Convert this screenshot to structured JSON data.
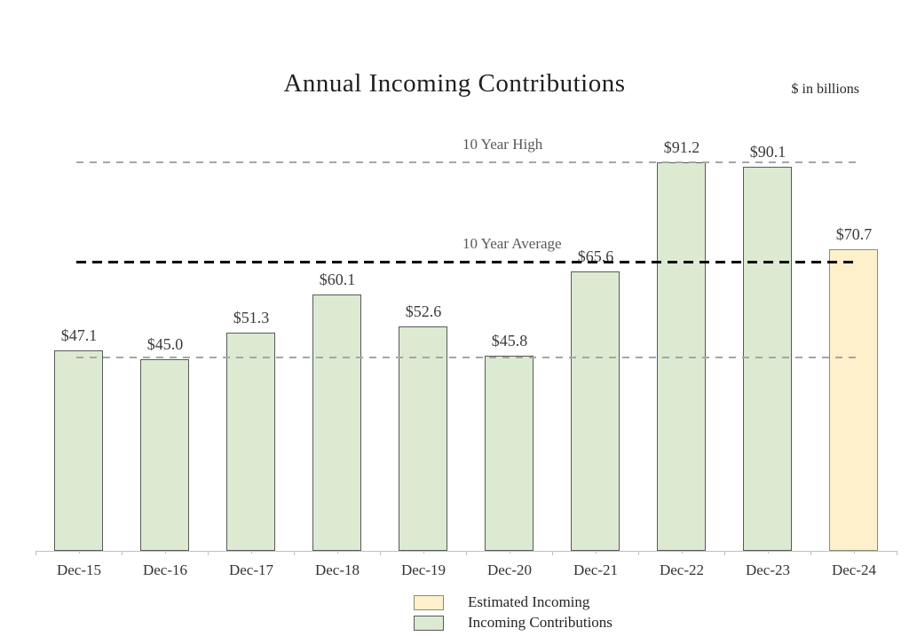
{
  "page": {
    "title": "Annual Incoming Contributions",
    "units_note": "$ in billions"
  },
  "legend": {
    "items": [
      {
        "label": "Estimated Incoming",
        "fill": "#fdf0cb",
        "border": "#8c8c7a"
      },
      {
        "label": "Incoming Contributions",
        "fill": "#dcead2",
        "border": "#595959"
      }
    ]
  },
  "chart_data": {
    "type": "bar",
    "title": "Annual Incoming Contributions",
    "units": "$ in billions",
    "categories": [
      "Dec-15",
      "Dec-16",
      "Dec-17",
      "Dec-18",
      "Dec-19",
      "Dec-20",
      "Dec-21",
      "Dec-22",
      "Dec-23",
      "Dec-24"
    ],
    "series": [
      {
        "name": "Incoming Contributions",
        "color": "#dcead2",
        "border_color": "#595959",
        "values": [
          47.1,
          45.0,
          51.3,
          60.1,
          52.6,
          45.8,
          65.6,
          91.2,
          90.1,
          null
        ]
      },
      {
        "name": "Estimated Incoming",
        "color": "#fdf0cb",
        "border_color": "#8c8c7a",
        "values": [
          null,
          null,
          null,
          null,
          null,
          null,
          null,
          null,
          null,
          70.7
        ]
      }
    ],
    "data_labels": [
      "$47.1",
      "$45.0",
      "$51.3",
      "$60.1",
      "$52.6",
      "$45.8",
      "$65.6",
      "$91.2",
      "$90.1",
      "$70.7"
    ],
    "reference_lines": [
      {
        "label": "10 Year High",
        "value": 91.2,
        "color": "#a6a6a6",
        "thickness": 2
      },
      {
        "label": "10 Year Average",
        "value": 67.9,
        "color": "#000000",
        "thickness": 3
      },
      {
        "label": "",
        "value": 45.4,
        "color": "#a6a6a6",
        "thickness": 2
      }
    ],
    "ylim": [
      0,
      129.5
    ],
    "grid": false,
    "legend_position": "bottom-center",
    "axis_color": "#bfbfbf"
  }
}
